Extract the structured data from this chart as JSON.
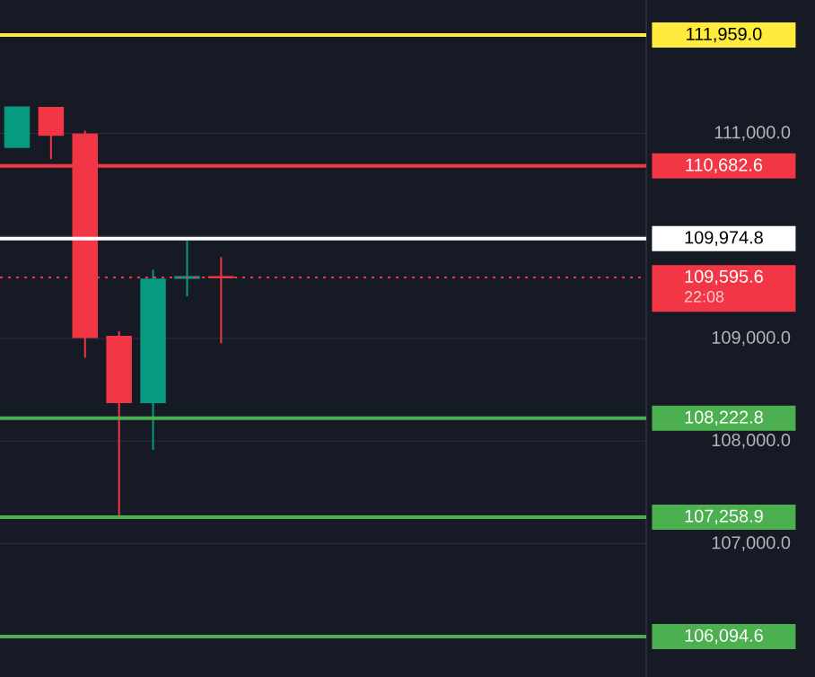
{
  "chart_data": {
    "type": "candlestick",
    "categories": [
      null,
      null,
      null,
      null,
      null,
      null,
      null,
      null,
      null,
      null,
      null,
      null,
      null,
      null,
      null,
      null,
      null,
      null,
      null
    ],
    "ohlc": [
      [
        110867,
        111255,
        110867,
        111255
      ],
      [
        111249,
        111249,
        110749,
        110985
      ],
      [
        110990,
        111026,
        108812,
        109013
      ],
      [
        109018,
        109071,
        107245,
        108379
      ],
      [
        108379,
        109670,
        107914,
        109576
      ],
      [
        109590,
        109951,
        109411,
        109600
      ],
      [
        109600,
        109793,
        108953,
        109595.6
      ],
      null,
      null,
      null,
      null,
      null,
      null,
      null,
      null,
      null,
      null,
      null,
      null
    ],
    "colors": [
      "#089981",
      "#f23645",
      "#f23645",
      "#f23645",
      "#089981",
      "#089981",
      "#f23645",
      null,
      null,
      null,
      null,
      null,
      null,
      null,
      null,
      null,
      null,
      null,
      null
    ],
    "ylim": [
      105700,
      112300
    ],
    "yticks": [
      {
        "value": 107000,
        "label": "107,000.0"
      },
      {
        "value": 108000,
        "label": "108,000.0"
      },
      {
        "value": 109000,
        "label": "109,000.0"
      },
      {
        "value": 110000,
        "label": null
      },
      {
        "value": 111000,
        "label": "111,000.0"
      }
    ],
    "grid": "y",
    "ref_lines": [
      {
        "axis": "y",
        "value": 111959.0,
        "label": "111,959.0",
        "color": "#ffeb3b",
        "line_style": "solid"
      },
      {
        "axis": "y",
        "value": 110682.6,
        "label": "110,682.6",
        "color": "#f23645",
        "line_style": "solid"
      },
      {
        "axis": "y",
        "value": 109974.8,
        "label": "109,974.8",
        "color": "#ffffff",
        "line_style": "solid"
      },
      {
        "axis": "y",
        "value": 109595.6,
        "label": "109,595.6",
        "color": "#f23645",
        "line_style": "dotted"
      },
      {
        "axis": "y",
        "value": 108222.8,
        "label": "108,222.8",
        "color": "#4caf50",
        "line_style": "solid"
      },
      {
        "axis": "y",
        "value": 107258.9,
        "label": "107,258.9",
        "color": "#4caf50",
        "line_style": "solid"
      },
      {
        "axis": "y",
        "value": 106094.6,
        "label": "106,094.6",
        "color": "#4caf50",
        "line_style": "solid"
      }
    ],
    "annotations": [
      "22:08"
    ]
  }
}
